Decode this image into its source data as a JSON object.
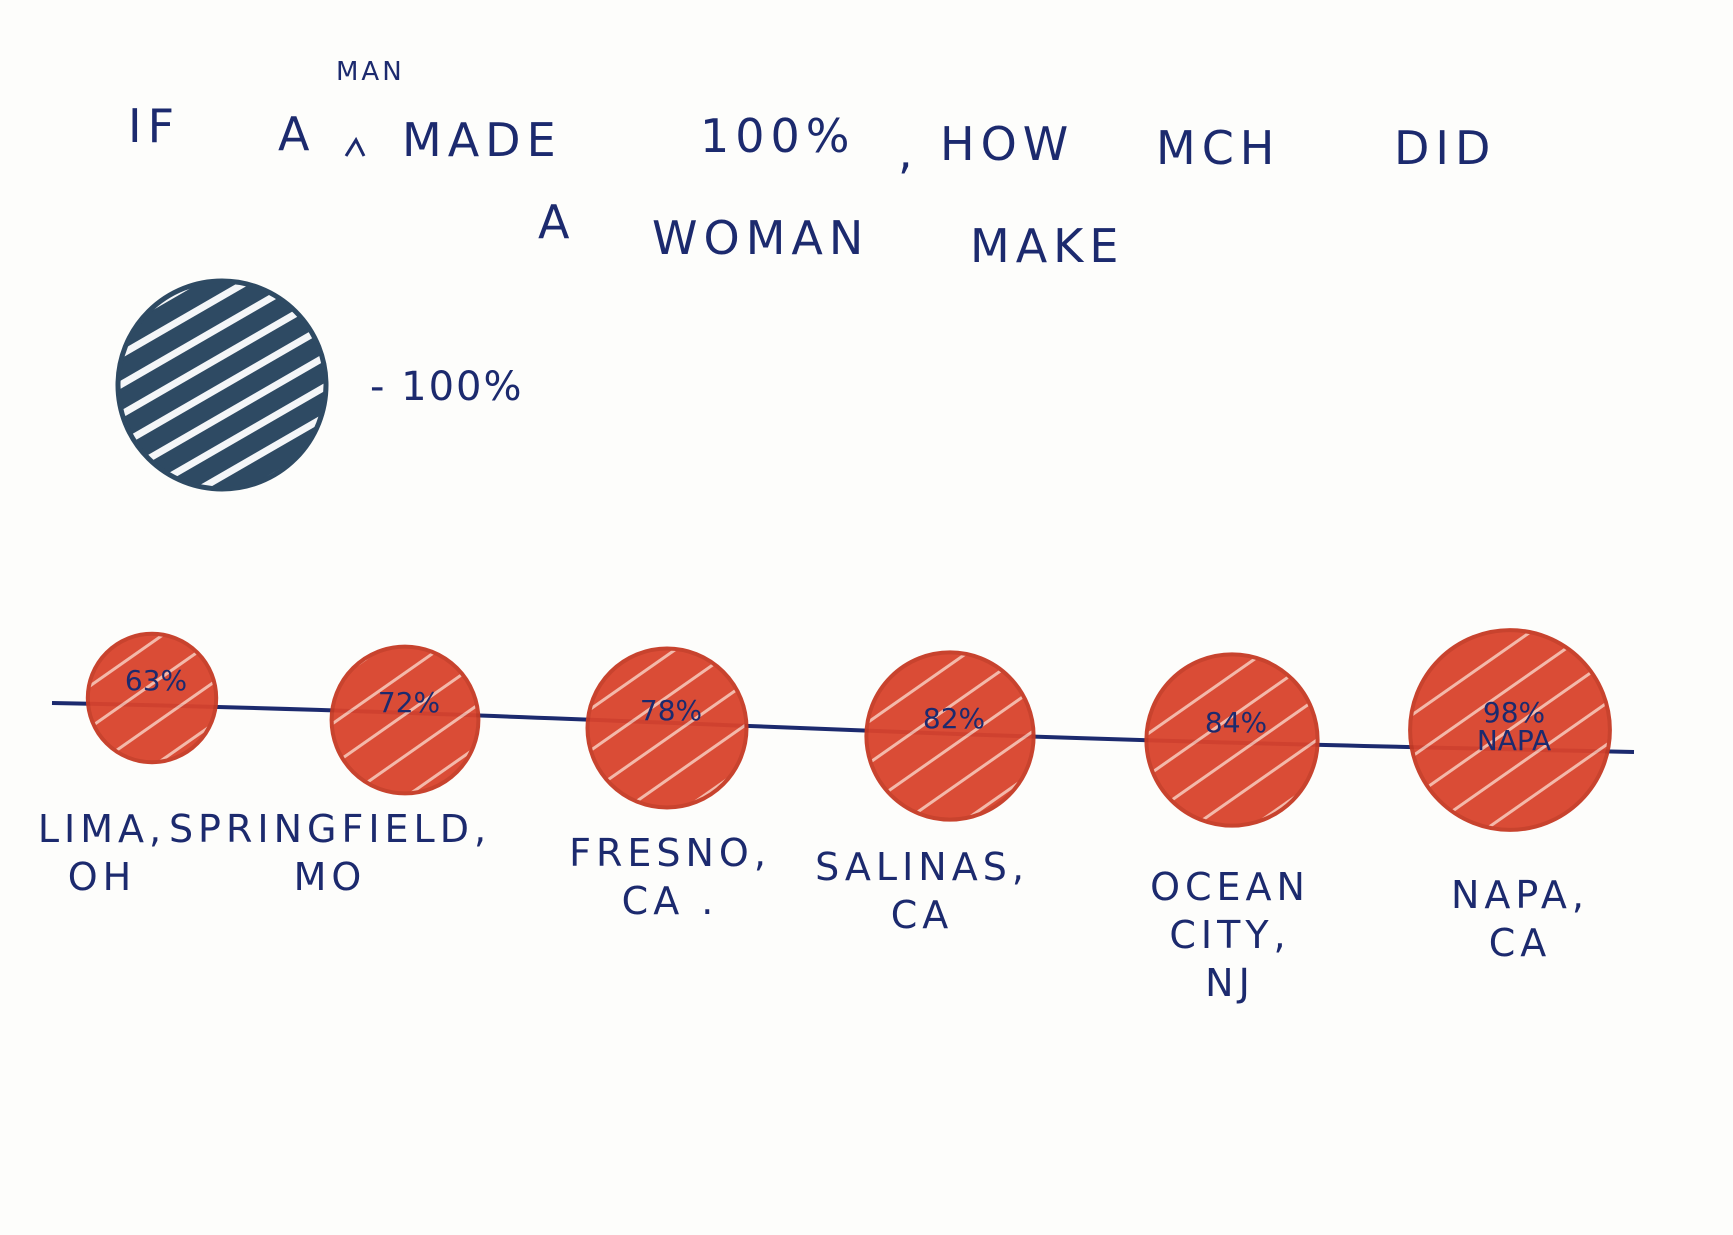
{
  "title": {
    "line1_if": "IF",
    "line1_a": "A",
    "line1_caret_insert": "MAN",
    "line1_made": "MADE",
    "line1_pct": "100%",
    "line1_comma": ",",
    "line1_how": "HOW",
    "line1_mch": "MCH",
    "line1_did": "DID",
    "line2_a": "A",
    "line2_woman": "WOMAN",
    "line2_make": "MAKE"
  },
  "legend": {
    "label": "- 100%",
    "value": 100,
    "color": "#2e4a63"
  },
  "chart_data": {
    "type": "bubble",
    "reference_value": 100,
    "bubble_color": "#d9432c",
    "line_color": "#1c2a6e",
    "points": [
      {
        "value": 63,
        "label": "63%",
        "city_lines": [
          "LIMA,",
          "OH"
        ]
      },
      {
        "value": 72,
        "label": "72%",
        "city_lines": [
          "SPRINGFIELD,",
          "MO"
        ]
      },
      {
        "value": 78,
        "label": "78%",
        "city_lines": [
          "FRESNO,",
          "CA ."
        ]
      },
      {
        "value": 82,
        "label": "82%",
        "city_lines": [
          "SALINAS,",
          "CA"
        ]
      },
      {
        "value": 84,
        "label": "84%",
        "city_lines": [
          "OCEAN",
          "CITY,",
          "NJ"
        ]
      },
      {
        "value": 98,
        "label": "98%",
        "inner_label": "NAPA",
        "city_lines": [
          "NAPA,",
          "CA"
        ]
      }
    ]
  }
}
